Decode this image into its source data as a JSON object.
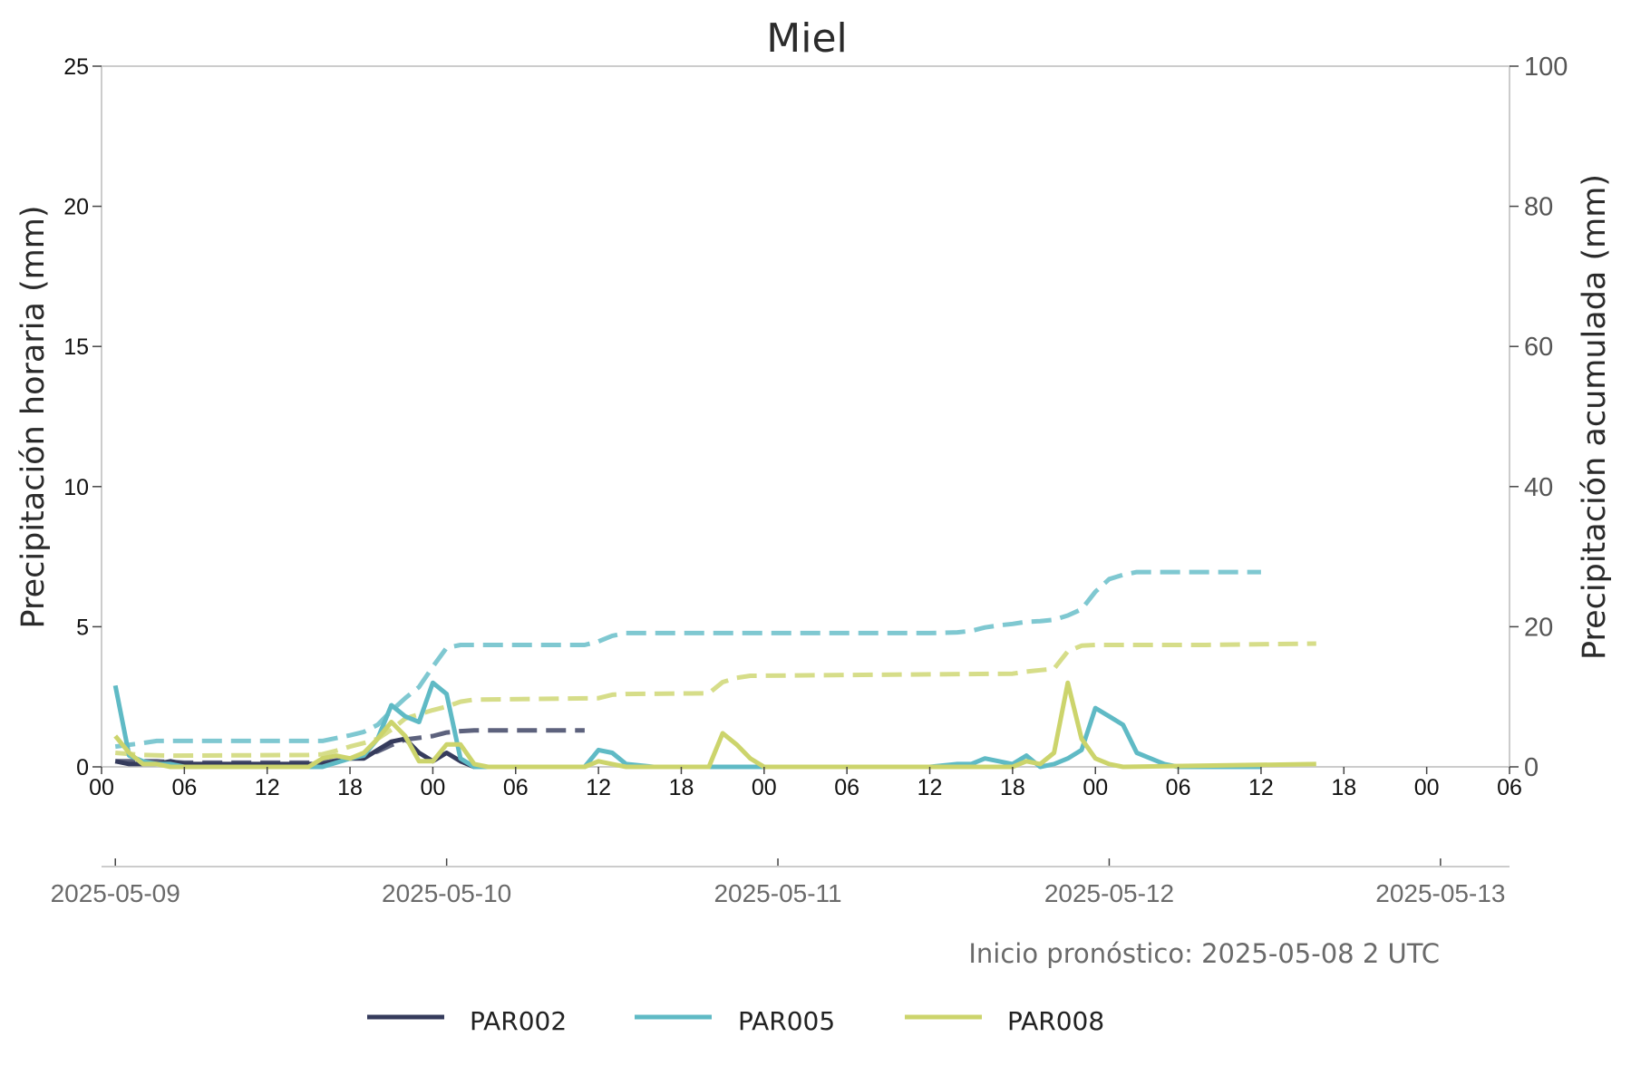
{
  "chart_data": {
    "type": "line",
    "title": "Miel",
    "ylabel": "Precipitación horaria (mm)",
    "ylabel_right": "Precipitación acumulada (mm)",
    "ylim": [
      0,
      25
    ],
    "ylim_right": [
      0,
      100
    ],
    "yticks": [
      "0",
      "5",
      "10",
      "15",
      "20",
      "25"
    ],
    "yticks_right": [
      "0",
      "20",
      "40",
      "60",
      "80",
      "100"
    ],
    "xlim_hours": [
      0,
      102
    ],
    "x_hour_ticks": [
      {
        "h": 0,
        "label": "00"
      },
      {
        "h": 6,
        "label": "06"
      },
      {
        "h": 12,
        "label": "12"
      },
      {
        "h": 18,
        "label": "18"
      },
      {
        "h": 24,
        "label": "00"
      },
      {
        "h": 30,
        "label": "06"
      },
      {
        "h": 36,
        "label": "12"
      },
      {
        "h": 42,
        "label": "18"
      },
      {
        "h": 48,
        "label": "00"
      },
      {
        "h": 54,
        "label": "06"
      },
      {
        "h": 60,
        "label": "12"
      },
      {
        "h": 66,
        "label": "18"
      },
      {
        "h": 72,
        "label": "00"
      },
      {
        "h": 78,
        "label": "06"
      },
      {
        "h": 84,
        "label": "12"
      },
      {
        "h": 90,
        "label": "18"
      },
      {
        "h": 96,
        "label": "00"
      },
      {
        "h": 102,
        "label": "06"
      }
    ],
    "date_ticks": [
      "2025-05-09",
      "2025-05-10",
      "2025-05-11",
      "2025-05-12",
      "2025-05-13"
    ],
    "annotation": "Inicio pronóstico: 2025-05-08 2 UTC",
    "grid": false,
    "legend_position": "bottom-center",
    "series": [
      {
        "name": "PAR002",
        "color": "#353b5c",
        "hourly": [
          [
            1,
            0.2
          ],
          [
            2,
            0.1
          ],
          [
            3,
            0.1
          ],
          [
            4,
            0.1
          ],
          [
            5,
            0.2
          ],
          [
            6,
            0.1
          ],
          [
            8,
            0.1
          ],
          [
            12,
            0.1
          ],
          [
            16,
            0.1
          ],
          [
            17,
            0.2
          ],
          [
            18,
            0.3
          ],
          [
            19,
            0.3
          ],
          [
            20,
            0.6
          ],
          [
            21,
            0.9
          ],
          [
            22,
            1.0
          ],
          [
            23,
            0.5
          ],
          [
            24,
            0.2
          ],
          [
            25,
            0.5
          ],
          [
            26,
            0.2
          ],
          [
            27,
            0.0
          ],
          [
            35,
            0.0
          ]
        ],
        "accumulated": [
          [
            1,
            0.8
          ],
          [
            4,
            0.8
          ],
          [
            6,
            0.6
          ],
          [
            16,
            0.6
          ],
          [
            17,
            0.9
          ],
          [
            18,
            1.2
          ],
          [
            19,
            1.6
          ],
          [
            20,
            2.2
          ],
          [
            21,
            3.1
          ],
          [
            22,
            3.9
          ],
          [
            24,
            4.4
          ],
          [
            25,
            4.9
          ],
          [
            26,
            5.1
          ],
          [
            27,
            5.2
          ],
          [
            35,
            5.2
          ]
        ]
      },
      {
        "name": "PAR005",
        "color": "#5fbac5",
        "hourly": [
          [
            1,
            2.9
          ],
          [
            2,
            0.4
          ],
          [
            3,
            0.2
          ],
          [
            4,
            0.1
          ],
          [
            5,
            0.1
          ],
          [
            6,
            0.0
          ],
          [
            16,
            0.0
          ],
          [
            18,
            0.3
          ],
          [
            19,
            0.4
          ],
          [
            20,
            1.0
          ],
          [
            21,
            2.2
          ],
          [
            22,
            1.8
          ],
          [
            23,
            1.6
          ],
          [
            24,
            3.0
          ],
          [
            25,
            2.6
          ],
          [
            26,
            0.3
          ],
          [
            27,
            0.0
          ],
          [
            35,
            0.0
          ],
          [
            36,
            0.6
          ],
          [
            37,
            0.5
          ],
          [
            38,
            0.1
          ],
          [
            40,
            0.0
          ],
          [
            60,
            0.0
          ],
          [
            62,
            0.1
          ],
          [
            63,
            0.1
          ],
          [
            64,
            0.3
          ],
          [
            65,
            0.2
          ],
          [
            66,
            0.1
          ],
          [
            67,
            0.4
          ],
          [
            68,
            0.0
          ],
          [
            69,
            0.1
          ],
          [
            70,
            0.3
          ],
          [
            71,
            0.6
          ],
          [
            72,
            2.1
          ],
          [
            73,
            1.8
          ],
          [
            74,
            1.5
          ],
          [
            75,
            0.5
          ],
          [
            76,
            0.3
          ],
          [
            77,
            0.1
          ],
          [
            78,
            0.0
          ],
          [
            84,
            0.0
          ]
        ],
        "accumulated": [
          [
            1,
            2.9
          ],
          [
            3,
            3.4
          ],
          [
            4,
            3.7
          ],
          [
            16,
            3.7
          ],
          [
            18,
            4.5
          ],
          [
            19,
            5.0
          ],
          [
            20,
            6.0
          ],
          [
            21,
            8.0
          ],
          [
            22,
            9.8
          ],
          [
            23,
            11.4
          ],
          [
            24,
            14.3
          ],
          [
            25,
            17.0
          ],
          [
            26,
            17.4
          ],
          [
            35,
            17.4
          ],
          [
            36,
            17.9
          ],
          [
            37,
            18.7
          ],
          [
            38,
            19.1
          ],
          [
            60,
            19.1
          ],
          [
            62,
            19.2
          ],
          [
            63,
            19.4
          ],
          [
            64,
            19.9
          ],
          [
            65,
            20.2
          ],
          [
            66,
            20.4
          ],
          [
            67,
            20.7
          ],
          [
            68,
            20.8
          ],
          [
            69,
            21.0
          ],
          [
            70,
            21.6
          ],
          [
            71,
            22.5
          ],
          [
            72,
            25.0
          ],
          [
            73,
            26.8
          ],
          [
            74,
            27.4
          ],
          [
            75,
            27.8
          ],
          [
            84,
            27.8
          ]
        ]
      },
      {
        "name": "PAR008",
        "color": "#ccd46c",
        "hourly": [
          [
            1,
            1.1
          ],
          [
            2,
            0.5
          ],
          [
            3,
            0.1
          ],
          [
            4,
            0.1
          ],
          [
            5,
            0.0
          ],
          [
            15,
            0.0
          ],
          [
            16,
            0.3
          ],
          [
            17,
            0.4
          ],
          [
            18,
            0.3
          ],
          [
            19,
            0.5
          ],
          [
            20,
            1.0
          ],
          [
            21,
            1.6
          ],
          [
            22,
            1.1
          ],
          [
            23,
            0.2
          ],
          [
            24,
            0.2
          ],
          [
            25,
            0.8
          ],
          [
            26,
            0.8
          ],
          [
            27,
            0.1
          ],
          [
            28,
            0.0
          ],
          [
            35,
            0.0
          ],
          [
            36,
            0.2
          ],
          [
            37,
            0.1
          ],
          [
            38,
            0.0
          ],
          [
            44,
            0.0
          ],
          [
            45,
            1.2
          ],
          [
            46,
            0.8
          ],
          [
            47,
            0.3
          ],
          [
            48,
            0.0
          ],
          [
            66,
            0.0
          ],
          [
            67,
            0.2
          ],
          [
            68,
            0.1
          ],
          [
            69,
            0.5
          ],
          [
            70,
            3.0
          ],
          [
            71,
            1.0
          ],
          [
            72,
            0.3
          ],
          [
            73,
            0.1
          ],
          [
            74,
            0.0
          ],
          [
            88,
            0.1
          ]
        ],
        "accumulated": [
          [
            1,
            2.0
          ],
          [
            3,
            1.7
          ],
          [
            5,
            1.6
          ],
          [
            15,
            1.7
          ],
          [
            16,
            1.8
          ],
          [
            17,
            2.3
          ],
          [
            18,
            2.9
          ],
          [
            19,
            3.4
          ],
          [
            20,
            4.0
          ],
          [
            21,
            5.3
          ],
          [
            22,
            6.9
          ],
          [
            23,
            7.5
          ],
          [
            24,
            8.1
          ],
          [
            25,
            8.6
          ],
          [
            26,
            9.3
          ],
          [
            27,
            9.6
          ],
          [
            36,
            9.8
          ],
          [
            37,
            10.3
          ],
          [
            38,
            10.4
          ],
          [
            44,
            10.5
          ],
          [
            45,
            12.1
          ],
          [
            46,
            12.7
          ],
          [
            47,
            13.0
          ],
          [
            66,
            13.3
          ],
          [
            67,
            13.6
          ],
          [
            68,
            13.8
          ],
          [
            69,
            14.0
          ],
          [
            70,
            16.5
          ],
          [
            71,
            17.3
          ],
          [
            72,
            17.4
          ],
          [
            80,
            17.4
          ],
          [
            88,
            17.6
          ]
        ]
      }
    ]
  }
}
